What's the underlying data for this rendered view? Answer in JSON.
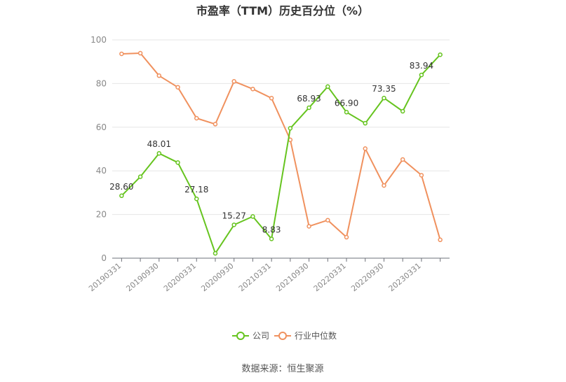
{
  "chart_data": {
    "type": "line",
    "title": "市盈率（TTM）历史百分位（%）",
    "xlabel": "",
    "ylabel": "",
    "ylim": [
      0,
      100
    ],
    "yticks": [
      0,
      20,
      40,
      60,
      80,
      100
    ],
    "x": [
      "20190331",
      "20190630",
      "20190930",
      "20191231",
      "20200331",
      "20200630",
      "20200930",
      "20201231",
      "20210331",
      "20210630",
      "20210930",
      "20211231",
      "20220331",
      "20220630",
      "20220930",
      "20221231",
      "20230331",
      "20230630"
    ],
    "xtick_labels": [
      "20190331",
      "20190930",
      "20200331",
      "20200930",
      "20210331",
      "20210930",
      "20220331",
      "20220930",
      "20230331"
    ],
    "grid": true,
    "legend": "bottom",
    "series": [
      {
        "name": "公司",
        "color": "#66c41f",
        "values": [
          28.6,
          37.3,
          48.01,
          43.8,
          27.18,
          2.2,
          15.27,
          19.1,
          8.83,
          59.5,
          68.93,
          78.6,
          66.9,
          61.8,
          73.35,
          67.3,
          83.94,
          93.2
        ],
        "labels": [
          {
            "index": 0,
            "text": "28.60"
          },
          {
            "index": 2,
            "text": "48.01"
          },
          {
            "index": 4,
            "text": "27.18"
          },
          {
            "index": 6,
            "text": "15.27"
          },
          {
            "index": 8,
            "text": "8.83"
          },
          {
            "index": 10,
            "text": "68.93"
          },
          {
            "index": 12,
            "text": "66.90"
          },
          {
            "index": 14,
            "text": "73.35"
          },
          {
            "index": 16,
            "text": "83.94"
          }
        ]
      },
      {
        "name": "行业中位数",
        "color": "#f0915e",
        "values": [
          93.6,
          93.9,
          83.6,
          78.3,
          64.1,
          61.4,
          81.0,
          77.5,
          73.3,
          54.2,
          14.6,
          17.4,
          9.6,
          50.2,
          33.3,
          45.2,
          38.0,
          8.4
        ],
        "labels": []
      }
    ]
  },
  "source_text": "数据来源：恒生聚源"
}
